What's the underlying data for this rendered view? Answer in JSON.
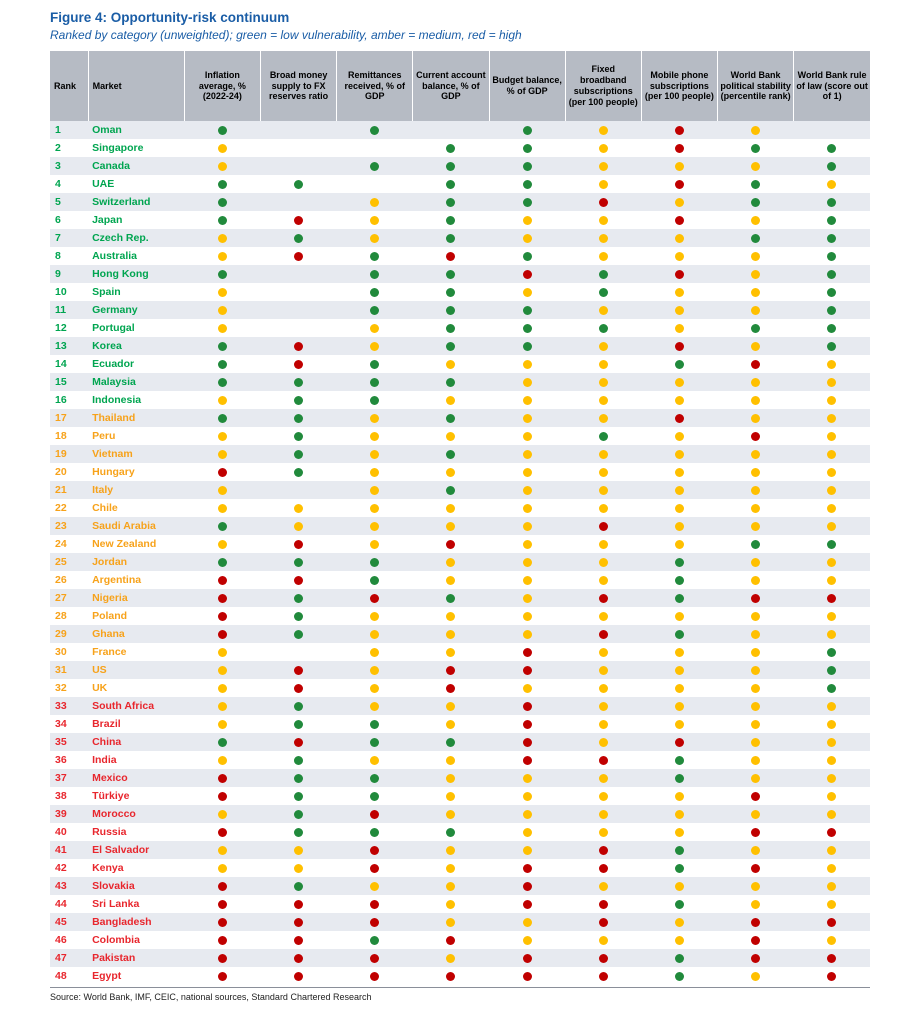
{
  "title": "Figure 4: Opportunity-risk continuum",
  "subtitle": "Ranked by category (unweighted); green = low vulnerability, amber = medium, red = high",
  "source": "Source: World Bank, IMF, CEIC, national sources, Standard Chartered Research",
  "colors": {
    "accent_blue": "#1A5DA6",
    "header_bg": "#B6BBC4",
    "row_alt_bg": "#E7EAF0",
    "dot_green": "#218A3C",
    "dot_amber": "#FFC000",
    "dot_red": "#C00000",
    "tier_green": "#00A550",
    "tier_orange": "#F7A21A",
    "tier_red": "#E8262D"
  },
  "chart_data": {
    "type": "heatmap",
    "legend": {
      "green": "low vulnerability",
      "amber": "medium",
      "red": "high"
    },
    "columns": [
      "Rank",
      "Market",
      "Inflation average, % (2022-24)",
      "Broad money supply to FX reserves ratio",
      "Remittances received, % of GDP",
      "Current account balance, % of GDP",
      "Budget balance, % of GDP",
      "Fixed broadband subscriptions (per 100 people)",
      "Mobile phone subscriptions (per 100 people)",
      "World Bank political stability (percentile rank)",
      "World Bank rule of law (score out of 1)"
    ],
    "rows": [
      {
        "rank": 1,
        "market": "Oman",
        "tier": "green",
        "dots": [
          "green",
          "none",
          "green",
          "none",
          "green",
          "amber",
          "red",
          "amber",
          "none"
        ]
      },
      {
        "rank": 2,
        "market": "Singapore",
        "tier": "green",
        "dots": [
          "amber",
          "none",
          "none",
          "green",
          "green",
          "amber",
          "red",
          "green",
          "green"
        ]
      },
      {
        "rank": 3,
        "market": "Canada",
        "tier": "green",
        "dots": [
          "amber",
          "none",
          "green",
          "green",
          "green",
          "amber",
          "amber",
          "amber",
          "green"
        ]
      },
      {
        "rank": 4,
        "market": "UAE",
        "tier": "green",
        "dots": [
          "green",
          "green",
          "none",
          "green",
          "green",
          "amber",
          "red",
          "green",
          "amber"
        ]
      },
      {
        "rank": 5,
        "market": "Switzerland",
        "tier": "green",
        "dots": [
          "green",
          "none",
          "amber",
          "green",
          "green",
          "red",
          "amber",
          "green",
          "green"
        ]
      },
      {
        "rank": 6,
        "market": "Japan",
        "tier": "green",
        "dots": [
          "green",
          "red",
          "amber",
          "green",
          "amber",
          "amber",
          "red",
          "amber",
          "green"
        ]
      },
      {
        "rank": 7,
        "market": "Czech Rep.",
        "tier": "green",
        "dots": [
          "amber",
          "green",
          "amber",
          "green",
          "amber",
          "amber",
          "amber",
          "green",
          "green"
        ]
      },
      {
        "rank": 8,
        "market": "Australia",
        "tier": "green",
        "dots": [
          "amber",
          "red",
          "green",
          "red",
          "green",
          "amber",
          "amber",
          "amber",
          "green"
        ]
      },
      {
        "rank": 9,
        "market": "Hong Kong",
        "tier": "green",
        "dots": [
          "green",
          "none",
          "green",
          "green",
          "red",
          "green",
          "red",
          "amber",
          "green"
        ]
      },
      {
        "rank": 10,
        "market": "Spain",
        "tier": "green",
        "dots": [
          "amber",
          "none",
          "green",
          "green",
          "amber",
          "green",
          "amber",
          "amber",
          "green"
        ]
      },
      {
        "rank": 11,
        "market": "Germany",
        "tier": "green",
        "dots": [
          "amber",
          "none",
          "green",
          "green",
          "green",
          "amber",
          "amber",
          "amber",
          "green"
        ]
      },
      {
        "rank": 12,
        "market": "Portugal",
        "tier": "green",
        "dots": [
          "amber",
          "none",
          "amber",
          "green",
          "green",
          "green",
          "amber",
          "green",
          "green"
        ]
      },
      {
        "rank": 13,
        "market": "Korea",
        "tier": "green",
        "dots": [
          "green",
          "red",
          "amber",
          "green",
          "green",
          "amber",
          "red",
          "amber",
          "green"
        ]
      },
      {
        "rank": 14,
        "market": "Ecuador",
        "tier": "green",
        "dots": [
          "green",
          "red",
          "green",
          "amber",
          "amber",
          "amber",
          "green",
          "red",
          "amber"
        ]
      },
      {
        "rank": 15,
        "market": "Malaysia",
        "tier": "green",
        "dots": [
          "green",
          "green",
          "green",
          "green",
          "amber",
          "amber",
          "amber",
          "amber",
          "amber"
        ]
      },
      {
        "rank": 16,
        "market": "Indonesia",
        "tier": "green",
        "dots": [
          "amber",
          "green",
          "green",
          "amber",
          "amber",
          "amber",
          "amber",
          "amber",
          "amber"
        ]
      },
      {
        "rank": 17,
        "market": "Thailand",
        "tier": "orange",
        "dots": [
          "green",
          "green",
          "amber",
          "green",
          "amber",
          "amber",
          "red",
          "amber",
          "amber"
        ]
      },
      {
        "rank": 18,
        "market": "Peru",
        "tier": "orange",
        "dots": [
          "amber",
          "green",
          "amber",
          "amber",
          "amber",
          "green",
          "amber",
          "red",
          "amber"
        ]
      },
      {
        "rank": 19,
        "market": "Vietnam",
        "tier": "orange",
        "dots": [
          "amber",
          "green",
          "amber",
          "green",
          "amber",
          "amber",
          "amber",
          "amber",
          "amber"
        ]
      },
      {
        "rank": 20,
        "market": "Hungary",
        "tier": "orange",
        "dots": [
          "red",
          "green",
          "amber",
          "amber",
          "amber",
          "amber",
          "amber",
          "amber",
          "amber"
        ]
      },
      {
        "rank": 21,
        "market": "Italy",
        "tier": "orange",
        "dots": [
          "amber",
          "none",
          "amber",
          "green",
          "amber",
          "amber",
          "amber",
          "amber",
          "amber"
        ]
      },
      {
        "rank": 22,
        "market": "Chile",
        "tier": "orange",
        "dots": [
          "amber",
          "amber",
          "amber",
          "amber",
          "amber",
          "amber",
          "amber",
          "amber",
          "amber"
        ]
      },
      {
        "rank": 23,
        "market": "Saudi Arabia",
        "tier": "orange",
        "dots": [
          "green",
          "amber",
          "amber",
          "amber",
          "amber",
          "red",
          "amber",
          "amber",
          "amber"
        ]
      },
      {
        "rank": 24,
        "market": "New Zealand",
        "tier": "orange",
        "dots": [
          "amber",
          "red",
          "amber",
          "red",
          "amber",
          "amber",
          "amber",
          "green",
          "green"
        ]
      },
      {
        "rank": 25,
        "market": "Jordan",
        "tier": "orange",
        "dots": [
          "green",
          "green",
          "green",
          "amber",
          "amber",
          "amber",
          "green",
          "amber",
          "amber"
        ]
      },
      {
        "rank": 26,
        "market": "Argentina",
        "tier": "orange",
        "dots": [
          "red",
          "red",
          "green",
          "amber",
          "amber",
          "amber",
          "green",
          "amber",
          "amber"
        ]
      },
      {
        "rank": 27,
        "market": "Nigeria",
        "tier": "orange",
        "dots": [
          "red",
          "green",
          "red",
          "green",
          "amber",
          "red",
          "green",
          "red",
          "red"
        ]
      },
      {
        "rank": 28,
        "market": "Poland",
        "tier": "orange",
        "dots": [
          "red",
          "green",
          "amber",
          "amber",
          "amber",
          "amber",
          "amber",
          "amber",
          "amber"
        ]
      },
      {
        "rank": 29,
        "market": "Ghana",
        "tier": "orange",
        "dots": [
          "red",
          "green",
          "amber",
          "amber",
          "amber",
          "red",
          "green",
          "amber",
          "amber"
        ]
      },
      {
        "rank": 30,
        "market": "France",
        "tier": "orange",
        "dots": [
          "amber",
          "none",
          "amber",
          "amber",
          "red",
          "amber",
          "amber",
          "amber",
          "green"
        ]
      },
      {
        "rank": 31,
        "market": "US",
        "tier": "orange",
        "dots": [
          "amber",
          "red",
          "amber",
          "red",
          "red",
          "amber",
          "amber",
          "amber",
          "green"
        ]
      },
      {
        "rank": 32,
        "market": "UK",
        "tier": "orange",
        "dots": [
          "amber",
          "red",
          "amber",
          "red",
          "amber",
          "amber",
          "amber",
          "amber",
          "green"
        ]
      },
      {
        "rank": 33,
        "market": "South Africa",
        "tier": "red",
        "dots": [
          "amber",
          "green",
          "amber",
          "amber",
          "red",
          "amber",
          "amber",
          "amber",
          "amber"
        ]
      },
      {
        "rank": 34,
        "market": "Brazil",
        "tier": "red",
        "dots": [
          "amber",
          "green",
          "green",
          "amber",
          "red",
          "amber",
          "amber",
          "amber",
          "amber"
        ]
      },
      {
        "rank": 35,
        "market": "China",
        "tier": "red",
        "dots": [
          "green",
          "red",
          "green",
          "green",
          "red",
          "amber",
          "red",
          "amber",
          "amber"
        ]
      },
      {
        "rank": 36,
        "market": "India",
        "tier": "red",
        "dots": [
          "amber",
          "green",
          "amber",
          "amber",
          "red",
          "red",
          "green",
          "amber",
          "amber"
        ]
      },
      {
        "rank": 37,
        "market": "Mexico",
        "tier": "red",
        "dots": [
          "red",
          "green",
          "green",
          "amber",
          "amber",
          "amber",
          "green",
          "amber",
          "amber"
        ]
      },
      {
        "rank": 38,
        "market": "Türkiye",
        "tier": "red",
        "dots": [
          "red",
          "green",
          "green",
          "amber",
          "amber",
          "amber",
          "amber",
          "red",
          "amber"
        ]
      },
      {
        "rank": 39,
        "market": "Morocco",
        "tier": "red",
        "dots": [
          "amber",
          "green",
          "red",
          "amber",
          "amber",
          "amber",
          "amber",
          "amber",
          "amber"
        ]
      },
      {
        "rank": 40,
        "market": "Russia",
        "tier": "red",
        "dots": [
          "red",
          "green",
          "green",
          "green",
          "amber",
          "amber",
          "amber",
          "red",
          "red"
        ]
      },
      {
        "rank": 41,
        "market": "El Salvador",
        "tier": "red",
        "dots": [
          "amber",
          "amber",
          "red",
          "amber",
          "amber",
          "red",
          "green",
          "amber",
          "amber"
        ]
      },
      {
        "rank": 42,
        "market": "Kenya",
        "tier": "red",
        "dots": [
          "amber",
          "amber",
          "red",
          "amber",
          "red",
          "red",
          "green",
          "red",
          "amber"
        ]
      },
      {
        "rank": 43,
        "market": "Slovakia",
        "tier": "red",
        "dots": [
          "red",
          "green",
          "amber",
          "amber",
          "red",
          "amber",
          "amber",
          "amber",
          "amber"
        ]
      },
      {
        "rank": 44,
        "market": "Sri Lanka",
        "tier": "red",
        "dots": [
          "red",
          "red",
          "red",
          "amber",
          "red",
          "red",
          "green",
          "amber",
          "amber"
        ]
      },
      {
        "rank": 45,
        "market": "Bangladesh",
        "tier": "red",
        "dots": [
          "red",
          "red",
          "red",
          "amber",
          "amber",
          "red",
          "amber",
          "red",
          "red"
        ]
      },
      {
        "rank": 46,
        "market": "Colombia",
        "tier": "red",
        "dots": [
          "red",
          "red",
          "green",
          "red",
          "amber",
          "amber",
          "amber",
          "red",
          "amber"
        ]
      },
      {
        "rank": 47,
        "market": "Pakistan",
        "tier": "red",
        "dots": [
          "red",
          "red",
          "red",
          "amber",
          "red",
          "red",
          "green",
          "red",
          "red"
        ]
      },
      {
        "rank": 48,
        "market": "Egypt",
        "tier": "red",
        "dots": [
          "red",
          "red",
          "red",
          "red",
          "red",
          "red",
          "green",
          "amber",
          "red"
        ]
      }
    ]
  }
}
